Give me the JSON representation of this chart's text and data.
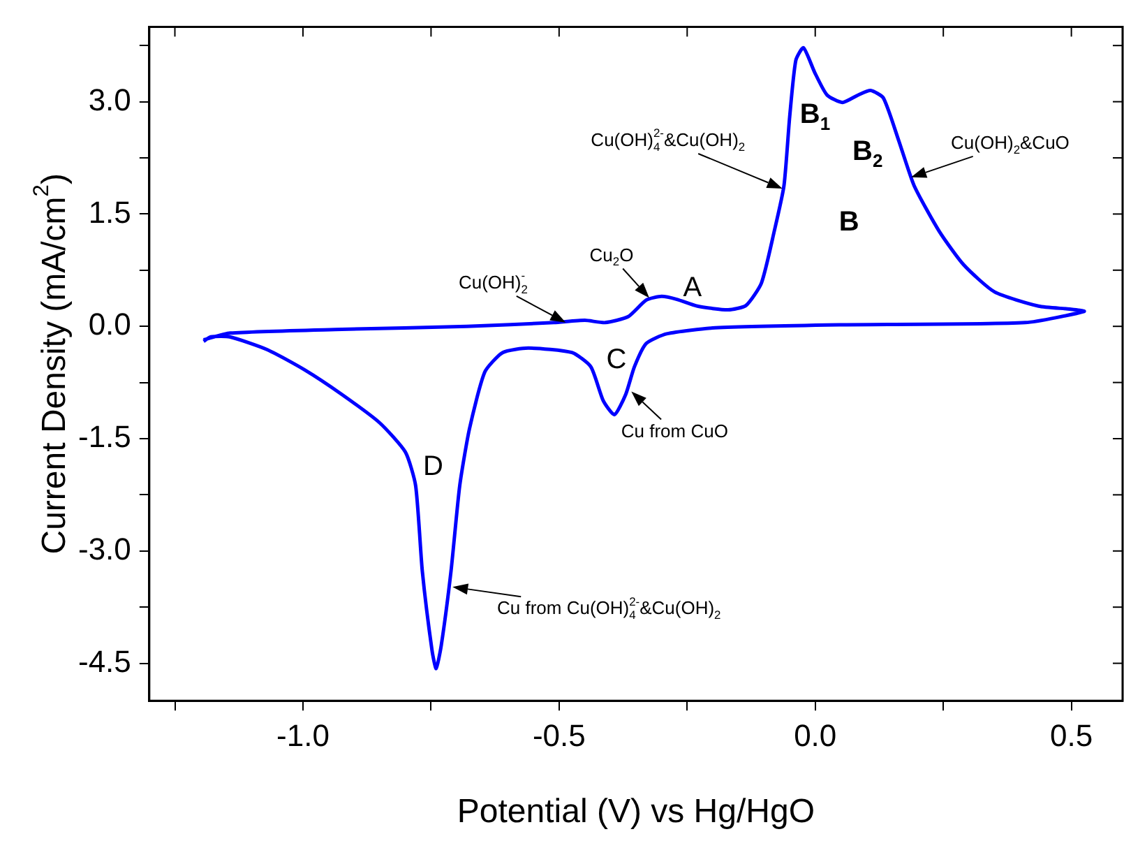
{
  "chart_data": {
    "type": "line",
    "xlabel": "Potential (V) vs Hg/HgO",
    "ylabel": "Current Density (mA/cm$^{2}$)",
    "xlim": [
      -1.3,
      0.6
    ],
    "ylim": [
      -5,
      4
    ],
    "xticks": [
      {
        "value": -1.25,
        "label": null
      },
      {
        "value": -1,
        "label": "-1.0"
      },
      {
        "value": -0.75,
        "label": null
      },
      {
        "value": -0.5,
        "label": "-0.5"
      },
      {
        "value": -0.25,
        "label": null
      },
      {
        "value": 0,
        "label": "0.0"
      },
      {
        "value": 0.25,
        "label": null
      },
      {
        "value": 0.5,
        "label": "0.5"
      }
    ],
    "yticks": [
      {
        "value": -4.5,
        "label": "-4.5"
      },
      {
        "value": -3.75,
        "label": null
      },
      {
        "value": -3,
        "label": "-3.0"
      },
      {
        "value": -2.25,
        "label": null
      },
      {
        "value": -1.5,
        "label": "-1.5"
      },
      {
        "value": -0.75,
        "label": null
      },
      {
        "value": 0,
        "label": "0.0"
      },
      {
        "value": 0.75,
        "label": null
      },
      {
        "value": 1.5,
        "label": "1.5"
      },
      {
        "value": 2.25,
        "label": null
      },
      {
        "value": 3,
        "label": "3.0"
      },
      {
        "value": 3.75,
        "label": null
      }
    ],
    "grid": false,
    "legend": false,
    "marker": "none",
    "line_style": "solid",
    "series": [
      {
        "color": "#0000ff",
        "x": [
          -1.194,
          -1.142,
          -0.924,
          -0.68,
          -0.51,
          -0.45,
          -0.41,
          -0.365,
          -0.33,
          -0.3,
          -0.27,
          -0.23,
          -0.17,
          -0.135,
          -0.105,
          -0.08,
          -0.061,
          -0.05,
          -0.038,
          -0.023,
          -0.001,
          0.023,
          0.053,
          0.084,
          0.108,
          0.133,
          0.163,
          0.193,
          0.242,
          0.29,
          0.35,
          0.436,
          0.497,
          0.525,
          0.41,
          0.047,
          -0.195,
          -0.29,
          -0.33,
          -0.353,
          -0.37,
          -0.392,
          -0.414,
          -0.438,
          -0.475,
          -0.56,
          -0.61,
          -0.645,
          -0.675,
          -0.694,
          -0.711,
          -0.73,
          -0.74,
          -0.748,
          -0.767,
          -0.78,
          -0.8,
          -0.85,
          -0.924,
          -0.997,
          -1.07,
          -1.143,
          -1.18,
          -1.194
        ],
        "values": [
          -0.18,
          -0.09,
          -0.04,
          0.0,
          0.05,
          0.08,
          0.05,
          0.13,
          0.35,
          0.4,
          0.36,
          0.27,
          0.22,
          0.28,
          0.58,
          1.27,
          1.88,
          2.79,
          3.55,
          3.72,
          3.39,
          3.09,
          2.99,
          3.09,
          3.15,
          3.05,
          2.48,
          1.88,
          1.27,
          0.82,
          0.46,
          0.27,
          0.23,
          0.2,
          0.05,
          0.02,
          -0.02,
          -0.1,
          -0.23,
          -0.54,
          -0.91,
          -1.18,
          -0.99,
          -0.54,
          -0.35,
          -0.29,
          -0.35,
          -0.61,
          -1.37,
          -2.13,
          -3.27,
          -4.26,
          -4.57,
          -4.33,
          -3.27,
          -2.13,
          -1.68,
          -1.29,
          -0.91,
          -0.58,
          -0.31,
          -0.14,
          -0.14,
          -0.2
        ]
      }
    ],
    "annotations": [
      {
        "text": "Cu(OH)$_{2}$$^{-}$",
        "x": -0.487,
        "y": 0.05
      },
      {
        "text": "Cu$_{2}$O",
        "x": -0.324,
        "y": 0.38
      },
      {
        "text": "Cu(OH)$_{4}$$^{2-}$&Cu(OH)$_{2}$",
        "x": -0.064,
        "y": 1.84
      },
      {
        "text": "Cu(OH)$_{2}$&CuO",
        "x": 0.187,
        "y": 1.99
      },
      {
        "text": "Cu from CuO",
        "x": -0.359,
        "y": -0.87
      },
      {
        "text": "Cu from Cu(OH)$_{4}$$^{2-}$&Cu(OH)$_{2}$",
        "x": -0.708,
        "y": -3.48
      },
      "A",
      "B$_{1}$",
      "B$_{2}$",
      "B",
      "C",
      "D"
    ]
  }
}
